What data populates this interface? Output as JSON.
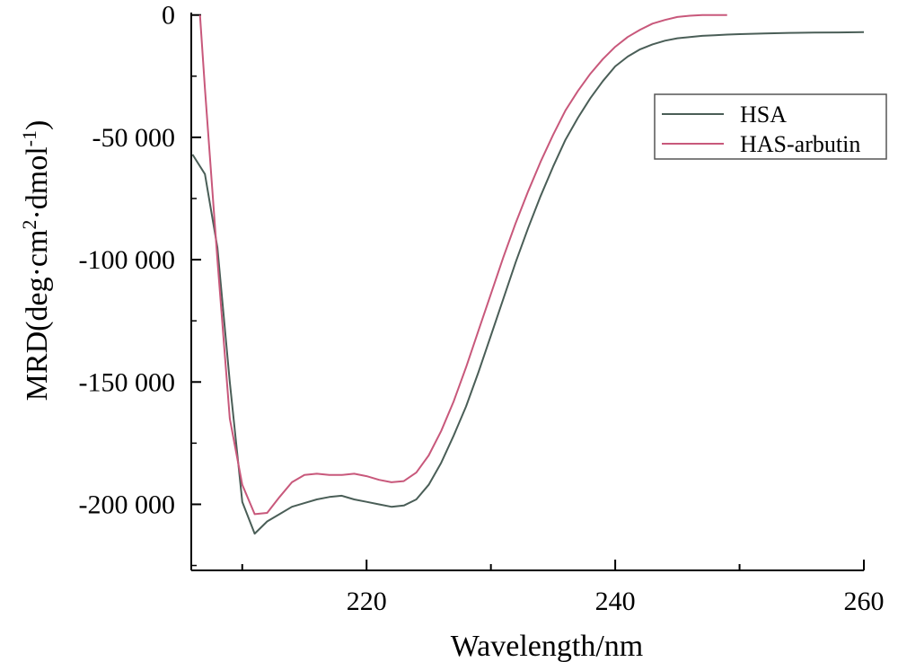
{
  "chart_data": {
    "type": "line",
    "xlabel": "Wavelength/nm",
    "ylabel_parts": [
      "MRD(deg·cm",
      "2",
      "·dmol",
      "-1",
      ")"
    ],
    "x_ticks": [
      220,
      240,
      260
    ],
    "x_tick_labels": [
      "220",
      "240",
      "260"
    ],
    "y_ticks": [
      0,
      -50000,
      -100000,
      -150000,
      -200000
    ],
    "y_tick_labels": [
      "0",
      "-50 000",
      "-100 000",
      "-150 000",
      "-200 000"
    ],
    "xlim": [
      205.9,
      260
    ],
    "ylim": [
      -227000,
      1000
    ],
    "grid": false,
    "legend_position": "top-right",
    "series": [
      {
        "name": "HSA",
        "color": "#4a5e57",
        "x": [
          206,
          207,
          208,
          209,
          210,
          211,
          212,
          213,
          214,
          215,
          216,
          217,
          218,
          219,
          220,
          221,
          222,
          223,
          224,
          225,
          226,
          227,
          228,
          229,
          230,
          231,
          232,
          233,
          234,
          235,
          236,
          237,
          238,
          239,
          240,
          241,
          242,
          243,
          244,
          245,
          246,
          247,
          248,
          249,
          250,
          252,
          254,
          256,
          258,
          260
        ],
        "y": [
          -57000,
          -65000,
          -95000,
          -150000,
          -199000,
          -212000,
          -207000,
          -204000,
          -201000,
          -199500,
          -198000,
          -197000,
          -196500,
          -198000,
          -199000,
          -200000,
          -201000,
          -200500,
          -198000,
          -192000,
          -183000,
          -172000,
          -160000,
          -146000,
          -131000,
          -116000,
          -101000,
          -87000,
          -74000,
          -62000,
          -51000,
          -42000,
          -34000,
          -27000,
          -21000,
          -17000,
          -14000,
          -12000,
          -10500,
          -9500,
          -9000,
          -8500,
          -8300,
          -8000,
          -7800,
          -7500,
          -7300,
          -7200,
          -7100,
          -7000
        ]
      },
      {
        "name": "HAS-arbutin",
        "color": "#c8587b",
        "x": [
          206.6,
          207,
          208,
          209,
          210,
          211,
          212,
          213,
          214,
          215,
          216,
          217,
          218,
          219,
          220,
          221,
          222,
          223,
          224,
          225,
          226,
          227,
          228,
          229,
          230,
          231,
          232,
          233,
          234,
          235,
          236,
          237,
          238,
          239,
          240,
          241,
          242,
          243,
          244,
          245,
          246,
          247,
          248,
          249
        ],
        "y": [
          0,
          -30000,
          -100000,
          -165000,
          -192000,
          -204000,
          -203500,
          -197000,
          -191000,
          -188000,
          -187500,
          -188000,
          -188000,
          -187500,
          -188500,
          -190000,
          -191000,
          -190500,
          -187000,
          -180000,
          -170000,
          -158000,
          -144000,
          -129000,
          -114000,
          -99000,
          -85000,
          -72000,
          -60000,
          -49000,
          -39000,
          -31000,
          -24000,
          -18000,
          -13000,
          -9000,
          -6000,
          -3500,
          -2000,
          -800,
          -300,
          0,
          0,
          0
        ]
      }
    ]
  }
}
